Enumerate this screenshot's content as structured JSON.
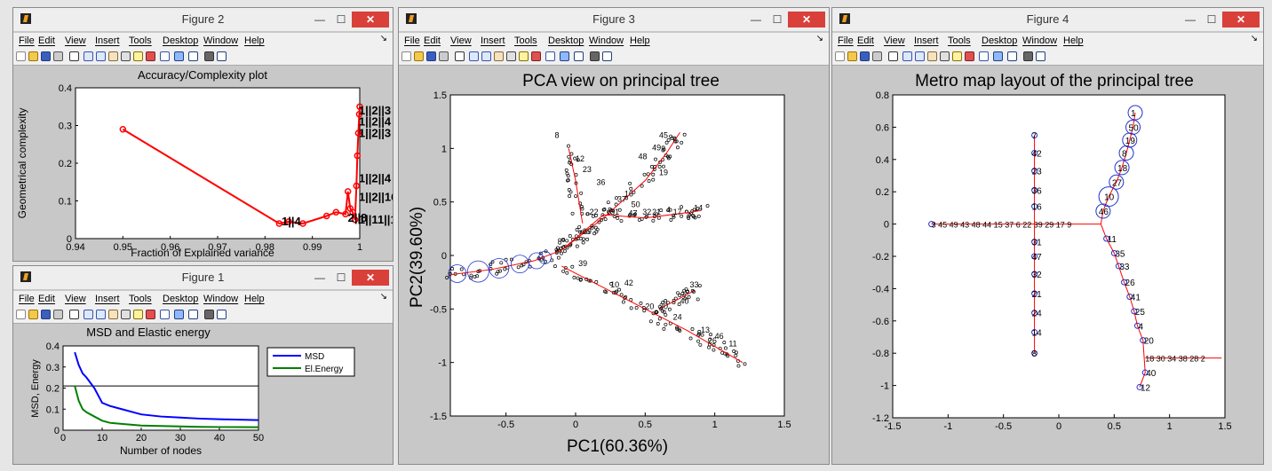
{
  "menu": [
    "File",
    "Edit",
    "View",
    "Insert",
    "Tools",
    "Desktop",
    "Window",
    "Help"
  ],
  "controls": {
    "minimize": "—",
    "maximize": "☐",
    "close": "✕"
  },
  "figure2": {
    "title": "Figure 2",
    "chart_data": {
      "type": "line",
      "title": "Accuracy/Complexity plot",
      "xlabel": "Fraction of Explained variance",
      "ylabel": "Geometrical complexity",
      "xlim": [
        0.94,
        1.0
      ],
      "ylim": [
        0,
        0.4
      ],
      "xticks": [
        "0.94",
        "0.95",
        "0.96",
        "0.97",
        "0.98",
        "0.99",
        "1"
      ],
      "yticks": [
        "0",
        "0.1",
        "0.2",
        "0.3",
        "0.4"
      ],
      "x": [
        0.95,
        0.983,
        0.985,
        0.988,
        0.993,
        0.995,
        0.997,
        0.9975,
        0.998,
        0.9985,
        0.999,
        0.9993,
        0.9995,
        0.9997,
        0.9999,
        1.0
      ],
      "y": [
        0.29,
        0.04,
        0.045,
        0.04,
        0.06,
        0.07,
        0.065,
        0.125,
        0.08,
        0.07,
        0.05,
        0.14,
        0.22,
        0.28,
        0.33,
        0.35
      ],
      "annotations": [
        "1||4",
        "2||8",
        "1||2||4",
        "1||2||16",
        "1||11||10",
        "1||2||3",
        "1||2||4",
        "1||2||3"
      ]
    }
  },
  "figure1": {
    "title": "Figure 1",
    "chart_data": {
      "type": "line",
      "title": "MSD and Elastic energy",
      "xlabel": "Number of nodes",
      "ylabel": "MSD, Energy",
      "xlim": [
        0,
        50
      ],
      "ylim": [
        0,
        0.4
      ],
      "xticks": [
        "0",
        "10",
        "20",
        "30",
        "40",
        "50"
      ],
      "yticks": [
        "0",
        "0.1",
        "0.2",
        "0.3",
        "0.4"
      ],
      "hline": 0.21,
      "series": [
        {
          "name": "MSD",
          "color": "#0000ff",
          "x": [
            3,
            4,
            5,
            6,
            8,
            10,
            12,
            15,
            20,
            25,
            30,
            35,
            40,
            45,
            50
          ],
          "y": [
            0.37,
            0.31,
            0.27,
            0.25,
            0.2,
            0.13,
            0.115,
            0.1,
            0.075,
            0.065,
            0.06,
            0.055,
            0.052,
            0.05,
            0.048
          ]
        },
        {
          "name": "El.Energy",
          "color": "#008000",
          "x": [
            3,
            4,
            5,
            6,
            8,
            10,
            12,
            15,
            20,
            25,
            30,
            35,
            40,
            45,
            50
          ],
          "y": [
            0.21,
            0.14,
            0.1,
            0.085,
            0.065,
            0.045,
            0.035,
            0.03,
            0.022,
            0.02,
            0.018,
            0.016,
            0.015,
            0.015,
            0.014
          ]
        }
      ]
    }
  },
  "figure3": {
    "title": "Figure 3",
    "chart_data": {
      "type": "scatter",
      "title": "PCA view on principal tree",
      "xlabel": "PC1(60.36%)",
      "ylabel": "PC2(39.60%)",
      "xlim": [
        -0.9,
        1.5
      ],
      "ylim": [
        -1.5,
        1.5
      ],
      "xticks": [
        "-0.5",
        "0",
        "0.5",
        "1",
        "1.5"
      ],
      "yticks": [
        "-1.5",
        "-1",
        "-0.5",
        "0",
        "0.5",
        "1",
        "1.5"
      ],
      "node_labels": [
        "8",
        "45",
        "49",
        "48",
        "12",
        "23",
        "36",
        "16",
        "37",
        "22",
        "29",
        "31",
        "47",
        "32",
        "21",
        "4",
        "14",
        "17",
        "39",
        "10",
        "42",
        "30",
        "20",
        "24",
        "13",
        "40",
        "33",
        "46",
        "11",
        "26",
        "50",
        "19",
        "6"
      ]
    }
  },
  "figure4": {
    "title": "Figure 4",
    "chart_data": {
      "type": "scatter",
      "title": "Metro map layout of the principal tree",
      "xlim": [
        -1.5,
        1.5
      ],
      "ylim": [
        -1.2,
        0.8
      ],
      "xticks": [
        "-1.5",
        "-1",
        "-0.5",
        "0",
        "0.5",
        "1",
        "1.5"
      ],
      "yticks": [
        "-1.2",
        "-1",
        "-0.8",
        "-0.6",
        "-0.4",
        "-0.2",
        "0",
        "0.2",
        "0.4",
        "0.6",
        "0.8"
      ],
      "horizontal_label": "3 45 49 43 48 44 15 37 6 22 39 29 17 9",
      "right_label": "18 30 34 38 28 2",
      "left_branch": [
        [
          "7",
          0.55
        ],
        [
          "42",
          0.44
        ],
        [
          "23",
          0.33
        ],
        [
          "36",
          0.21
        ],
        [
          "16",
          0.11
        ],
        [
          "31",
          -0.11
        ],
        [
          "47",
          -0.2
        ],
        [
          "32",
          -0.31
        ],
        [
          "21",
          -0.43
        ],
        [
          "24",
          -0.55
        ],
        [
          "14",
          -0.67
        ],
        [
          "8",
          -0.8
        ]
      ],
      "upper_branch": [
        [
          "1",
          0.69,
          0.69
        ],
        [
          "50",
          0.67,
          0.6
        ],
        [
          "19",
          0.64,
          0.52
        ],
        [
          "8",
          0.61,
          0.44
        ],
        [
          "18",
          0.57,
          0.35
        ],
        [
          "27",
          0.52,
          0.26
        ],
        [
          "10",
          0.45,
          0.17
        ],
        [
          "46",
          0.4,
          0.08
        ]
      ],
      "lower_branch": [
        [
          "11",
          0.43,
          -0.09
        ],
        [
          "35",
          0.5,
          -0.18
        ],
        [
          "33",
          0.54,
          -0.26
        ],
        [
          "26",
          0.59,
          -0.36
        ],
        [
          "41",
          0.64,
          -0.45
        ],
        [
          "25",
          0.68,
          -0.54
        ],
        [
          "4",
          0.71,
          -0.63
        ],
        [
          "20",
          0.76,
          -0.72
        ],
        [
          "40",
          0.78,
          -0.92
        ],
        [
          "12",
          0.73,
          -1.01
        ]
      ]
    }
  }
}
